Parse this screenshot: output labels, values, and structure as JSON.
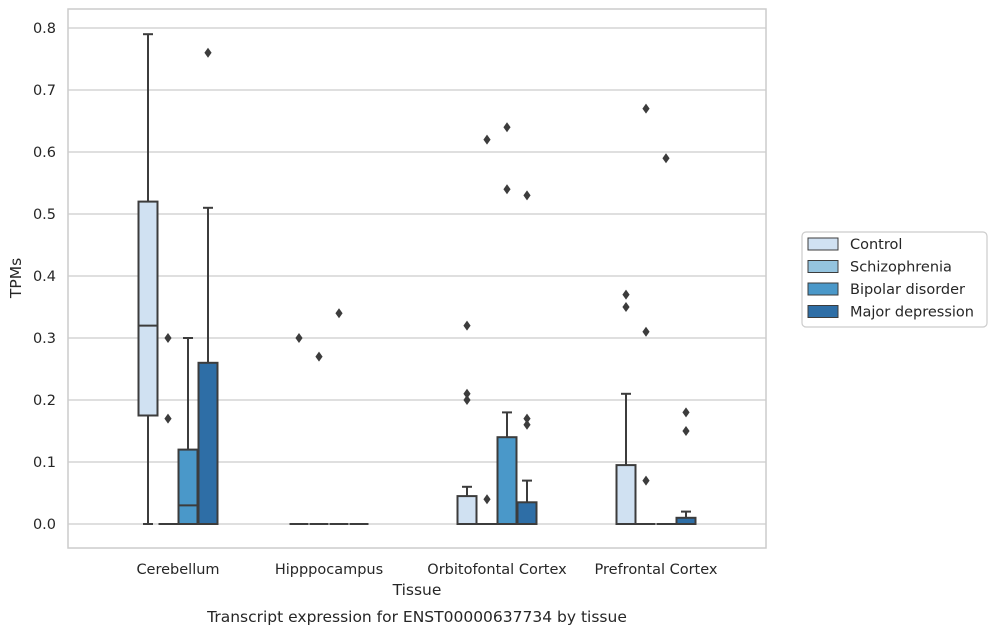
{
  "caption": "Transcript expression for ENST00000637734 by tissue",
  "colors": {
    "Control": "#d0e1f2",
    "Schizophrenia": "#94c4df",
    "Bipolar disorder": "#4a98c9",
    "Major depression": "#2e6ea6",
    "edge": "#3c3c3c",
    "grid": "#cccccc",
    "frame": "#cccccc"
  },
  "chart_data": {
    "type": "box",
    "xlabel": "Tissue",
    "ylabel": "TPMs",
    "ylim": [
      -0.04,
      0.83
    ],
    "yticks": [
      "0.0",
      "0.1",
      "0.2",
      "0.3",
      "0.4",
      "0.5",
      "0.6",
      "0.7",
      "0.8"
    ],
    "grid": "horizontal",
    "legend_position": "right-outside",
    "categories": [
      "Cerebellum",
      "Hipppocampus",
      "Orbitofontal Cortex",
      "Prefrontal Cortex"
    ],
    "series": [
      {
        "name": "Control",
        "boxes": [
          {
            "q1": 0.175,
            "median": 0.32,
            "q3": 0.52,
            "whislo": 0.0,
            "whishi": 0.79,
            "fliers": []
          },
          {
            "q1": 0.0,
            "median": 0.0,
            "q3": 0.0,
            "whislo": 0.0,
            "whishi": 0.0,
            "fliers": [
              0.3
            ]
          },
          {
            "q1": 0.0,
            "median": 0.0,
            "q3": 0.045,
            "whislo": 0.0,
            "whishi": 0.06,
            "fliers": [
              0.2,
              0.21,
              0.32
            ]
          },
          {
            "q1": 0.0,
            "median": 0.0,
            "q3": 0.095,
            "whislo": 0.0,
            "whishi": 0.21,
            "fliers": [
              0.35,
              0.37
            ]
          }
        ]
      },
      {
        "name": "Schizophrenia",
        "boxes": [
          {
            "q1": 0.0,
            "median": 0.0,
            "q3": 0.0,
            "whislo": 0.0,
            "whishi": 0.0,
            "fliers": [
              0.17,
              0.3
            ]
          },
          {
            "q1": 0.0,
            "median": 0.0,
            "q3": 0.0,
            "whislo": 0.0,
            "whishi": 0.0,
            "fliers": [
              0.27
            ]
          },
          {
            "q1": 0.0,
            "median": 0.0,
            "q3": 0.0,
            "whislo": 0.0,
            "whishi": 0.0,
            "fliers": [
              0.04,
              0.62
            ]
          },
          {
            "q1": 0.0,
            "median": 0.0,
            "q3": 0.0,
            "whislo": 0.0,
            "whishi": 0.0,
            "fliers": [
              0.07,
              0.31,
              0.67
            ]
          }
        ]
      },
      {
        "name": "Bipolar disorder",
        "boxes": [
          {
            "q1": 0.0,
            "median": 0.03,
            "q3": 0.12,
            "whislo": 0.0,
            "whishi": 0.3,
            "fliers": []
          },
          {
            "q1": 0.0,
            "median": 0.0,
            "q3": 0.0,
            "whislo": 0.0,
            "whishi": 0.0,
            "fliers": [
              0.34
            ]
          },
          {
            "q1": 0.0,
            "median": 0.0,
            "q3": 0.14,
            "whislo": 0.0,
            "whishi": 0.18,
            "fliers": [
              0.54,
              0.64
            ]
          },
          {
            "q1": 0.0,
            "median": 0.0,
            "q3": 0.0,
            "whislo": 0.0,
            "whishi": 0.0,
            "fliers": [
              0.59
            ]
          }
        ]
      },
      {
        "name": "Major depression",
        "boxes": [
          {
            "q1": 0.0,
            "median": 0.0,
            "q3": 0.26,
            "whislo": 0.0,
            "whishi": 0.51,
            "fliers": [
              0.76
            ]
          },
          {
            "q1": 0.0,
            "median": 0.0,
            "q3": 0.0,
            "whislo": 0.0,
            "whishi": 0.0,
            "fliers": []
          },
          {
            "q1": 0.0,
            "median": 0.0,
            "q3": 0.035,
            "whislo": 0.0,
            "whishi": 0.07,
            "fliers": [
              0.16,
              0.17,
              0.53
            ]
          },
          {
            "q1": 0.0,
            "median": 0.0,
            "q3": 0.01,
            "whislo": 0.0,
            "whishi": 0.02,
            "fliers": [
              0.15,
              0.18
            ]
          }
        ]
      }
    ]
  }
}
